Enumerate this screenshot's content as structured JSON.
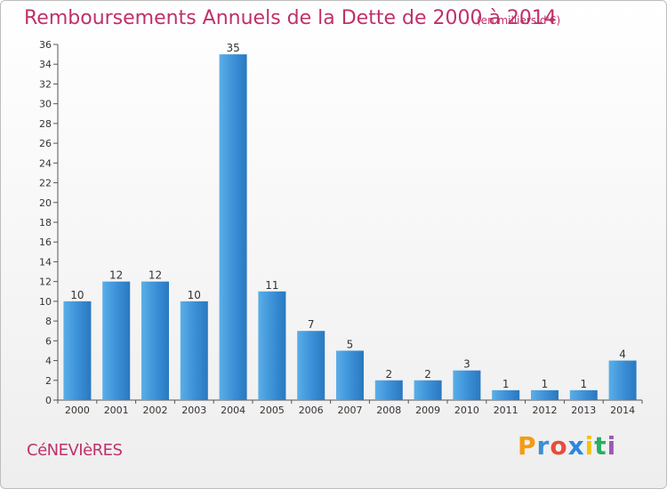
{
  "header": {
    "title": "Remboursements Annuels de la Dette de 2000 à 2014",
    "subtitle": "(en milliers d'€)"
  },
  "footer": {
    "commune": "CéNEVIèRES",
    "logo_letters": [
      "P",
      "r",
      "o",
      "x",
      "i",
      "t",
      "i"
    ],
    "logo_colors": [
      "#f39c12",
      "#3a8fd6",
      "#e74c3c",
      "#2e86de",
      "#f1c40f",
      "#27ae60",
      "#9b59b6"
    ]
  },
  "chart_data": {
    "type": "bar",
    "title": "Remboursements Annuels de la Dette de 2000 à 2014",
    "subtitle": "(en milliers d'€)",
    "categories": [
      "2000",
      "2001",
      "2002",
      "2003",
      "2004",
      "2005",
      "2006",
      "2007",
      "2008",
      "2009",
      "2010",
      "2011",
      "2012",
      "2013",
      "2014"
    ],
    "values": [
      10,
      12,
      12,
      10,
      35,
      11,
      7,
      5,
      2,
      2,
      3,
      1,
      1,
      1,
      4
    ],
    "ylim": [
      0,
      36
    ],
    "yticks": [
      0,
      2,
      4,
      6,
      8,
      10,
      12,
      14,
      16,
      18,
      20,
      22,
      24,
      26,
      28,
      30,
      32,
      34,
      36
    ],
    "bar_color": "#3a8fd6",
    "grid": false
  }
}
